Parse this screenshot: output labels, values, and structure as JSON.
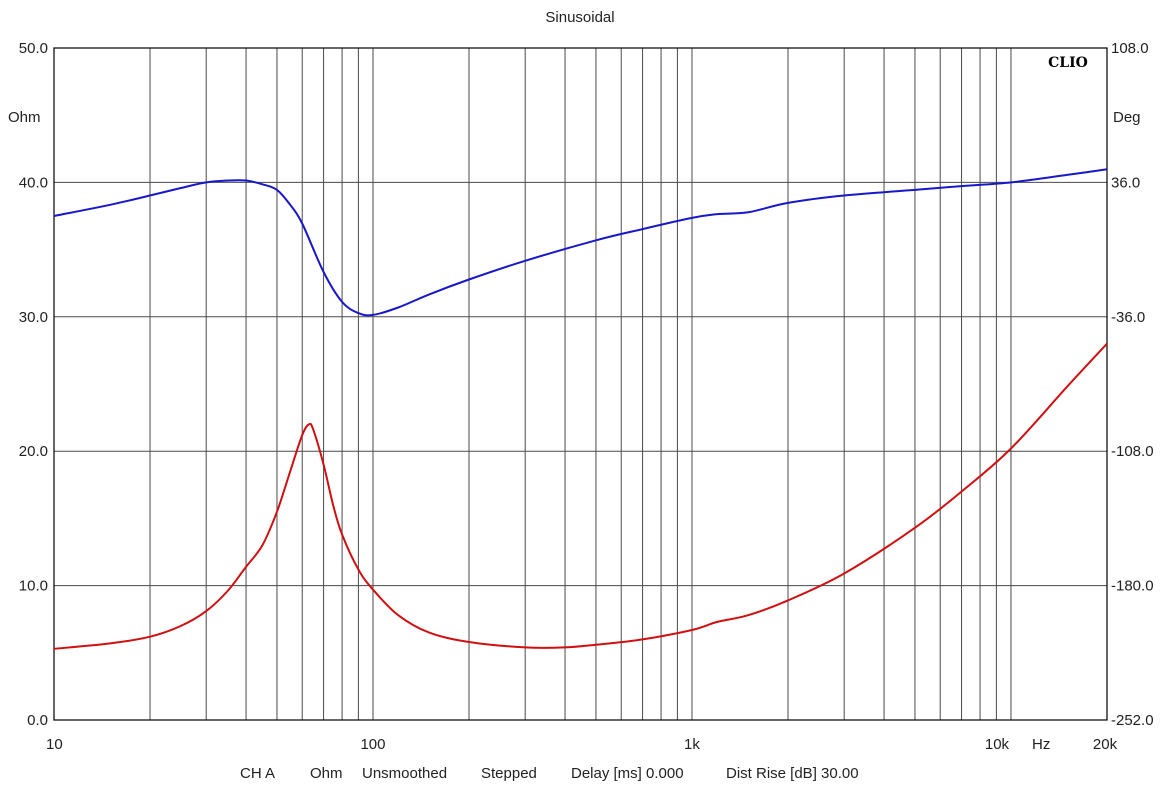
{
  "chart_data": {
    "type": "line",
    "title": "Sinusoidal",
    "brand": "CLIO",
    "x_scale": "log",
    "xlim": [
      10,
      20000
    ],
    "x_tick_values": [
      10,
      100,
      1000,
      10000,
      20000
    ],
    "x_tick_labels": [
      "10",
      "100",
      "1k",
      "10k",
      "20k"
    ],
    "x_unit": "Hz",
    "y_left": {
      "unit": "Ohm",
      "ylim": [
        0,
        50
      ],
      "ticks": [
        0,
        10,
        20,
        30,
        40,
        50
      ],
      "tick_labels": [
        "0.0",
        "10.0",
        "20.0",
        "30.0",
        "40.0",
        "50.0"
      ]
    },
    "y_right": {
      "unit": "Deg",
      "ylim": [
        -252,
        108
      ],
      "ticks": [
        -252,
        -180,
        -108,
        -36,
        36,
        108
      ],
      "tick_labels": [
        "-252.0",
        "-180.0",
        "-108.0",
        "-36.0",
        "36.0",
        "108.0"
      ]
    },
    "grid": true,
    "series": [
      {
        "color": "#d01010",
        "axis": "left",
        "x": [
          10,
          15,
          20,
          25,
          30,
          35,
          40,
          45,
          50,
          55,
          60,
          63,
          65,
          70,
          75,
          80,
          90,
          100,
          120,
          150,
          200,
          300,
          400,
          500,
          700,
          1000,
          1200,
          1500,
          2000,
          3000,
          5000,
          7000,
          10000,
          15000,
          20000
        ],
        "values": [
          5.3,
          5.7,
          6.2,
          7.0,
          8.1,
          9.6,
          11.4,
          13.0,
          15.5,
          18.5,
          21.2,
          22.0,
          21.6,
          19.0,
          16.0,
          13.8,
          11.2,
          9.7,
          7.8,
          6.5,
          5.8,
          5.4,
          5.4,
          5.6,
          6.0,
          6.7,
          7.3,
          7.8,
          8.9,
          10.9,
          14.3,
          17.0,
          20.2,
          24.8,
          28.0
        ]
      },
      {
        "color": "#1818c8",
        "axis": "right",
        "x": [
          10,
          15,
          20,
          25,
          30,
          35,
          40,
          45,
          50,
          55,
          60,
          70,
          80,
          90,
          100,
          120,
          150,
          200,
          300,
          500,
          700,
          1000,
          1200,
          1500,
          2000,
          3000,
          5000,
          7000,
          10000,
          15000,
          20000
        ],
        "values": [
          18,
          24,
          29,
          33,
          36,
          37,
          37,
          35,
          32,
          24,
          14,
          -12,
          -28,
          -34,
          -35,
          -31,
          -24,
          -16,
          -6,
          5,
          11,
          17,
          19,
          20,
          25,
          29,
          32,
          34,
          36,
          40,
          43
        ]
      }
    ]
  },
  "footer": {
    "channel": "CH A",
    "unit": "Ohm",
    "smoothing": "Unsmoothed",
    "mode": "Stepped",
    "delay": "Delay [ms] 0.000",
    "dist_rise": "Dist Rise [dB] 30.00"
  }
}
